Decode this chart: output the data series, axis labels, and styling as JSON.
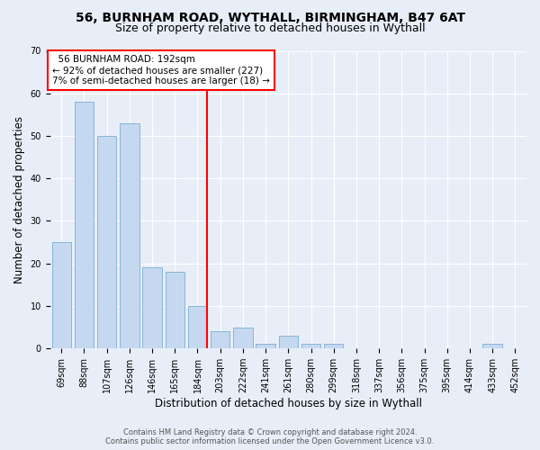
{
  "title1": "56, BURNHAM ROAD, WYTHALL, BIRMINGHAM, B47 6AT",
  "title2": "Size of property relative to detached houses in Wythall",
  "xlabel": "Distribution of detached houses by size in Wythall",
  "ylabel": "Number of detached properties",
  "categories": [
    "69sqm",
    "88sqm",
    "107sqm",
    "126sqm",
    "146sqm",
    "165sqm",
    "184sqm",
    "203sqm",
    "222sqm",
    "241sqm",
    "261sqm",
    "280sqm",
    "299sqm",
    "318sqm",
    "337sqm",
    "356sqm",
    "375sqm",
    "395sqm",
    "414sqm",
    "433sqm",
    "452sqm"
  ],
  "values": [
    25,
    58,
    50,
    53,
    19,
    18,
    10,
    4,
    5,
    1,
    3,
    1,
    1,
    0,
    0,
    0,
    0,
    0,
    0,
    1,
    0
  ],
  "bar_color": "#c5d8f0",
  "bar_edge_color": "#7aadd4",
  "ylim": [
    0,
    70
  ],
  "yticks": [
    0,
    10,
    20,
    30,
    40,
    50,
    60,
    70
  ],
  "annotation_line1": "56 BURNHAM ROAD: 192sqm",
  "annotation_line2": "← 92% of detached houses are smaller (227)",
  "annotation_line3": "7% of semi-detached houses are larger (18) →",
  "redline_bar_index": 6,
  "footer1": "Contains HM Land Registry data © Crown copyright and database right 2024.",
  "footer2": "Contains public sector information licensed under the Open Government Licence v3.0.",
  "bg_color": "#e8eef8",
  "plot_bg_color": "#e8eef8",
  "grid_color": "#ffffff",
  "title_fontsize": 10,
  "subtitle_fontsize": 9,
  "tick_fontsize": 7,
  "ylabel_fontsize": 8.5,
  "xlabel_fontsize": 8.5,
  "annotation_fontsize": 7.5,
  "footer_fontsize": 6
}
